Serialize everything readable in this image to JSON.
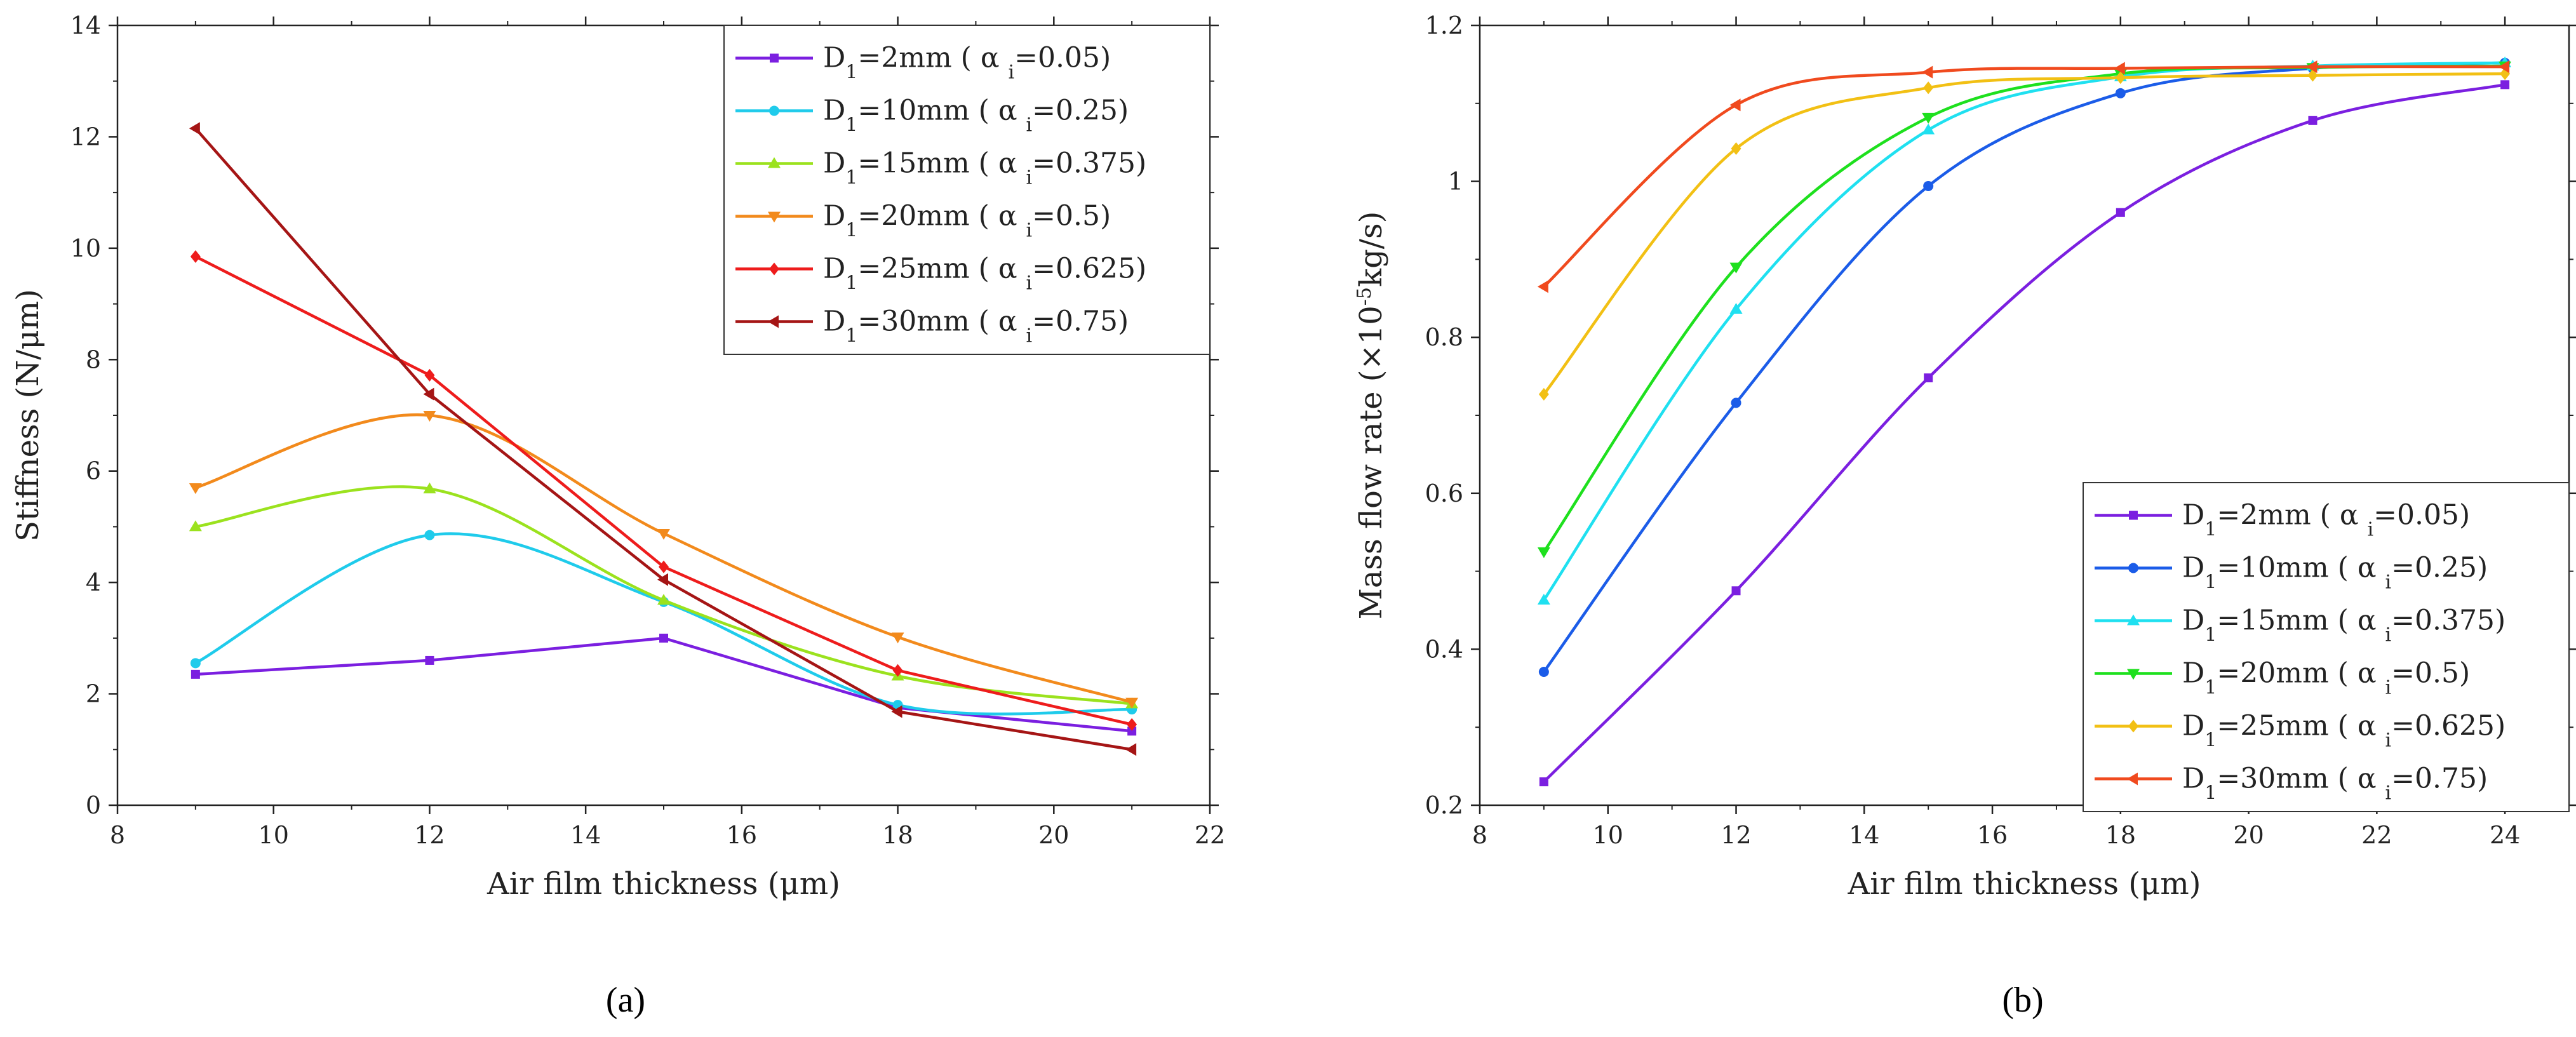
{
  "figure": {
    "panel_a_label": "(a)",
    "panel_b_label": "(b)"
  },
  "chart_data": [
    {
      "type": "line",
      "panel": "(a)",
      "title": "",
      "xlabel": "Air film thickness (μm)",
      "ylabel": "Stiffness (N/μm)",
      "xlim": [
        8,
        22
      ],
      "ylim": [
        0,
        14
      ],
      "xticks": [
        8,
        10,
        12,
        14,
        16,
        18,
        20,
        22
      ],
      "yticks": [
        0,
        2,
        4,
        6,
        8,
        10,
        12,
        14
      ],
      "grid": false,
      "legend_position": "top-right",
      "x": [
        9,
        12,
        15,
        18,
        21
      ],
      "series": [
        {
          "name_main": "D",
          "name_sub": "1",
          "name_mid": "=2mm ( α ",
          "name_sub2": "i",
          "name_tail": "=0.05)",
          "color": "#7B1FE0",
          "marker": "square",
          "smooth": false,
          "values": [
            2.35,
            2.6,
            3.0,
            1.75,
            1.33
          ]
        },
        {
          "name_main": "D",
          "name_sub": "1",
          "name_mid": "=10mm ( α ",
          "name_sub2": "i",
          "name_tail": "=0.25)",
          "color": "#1FCBEB",
          "marker": "circle",
          "smooth": true,
          "values": [
            2.55,
            4.85,
            3.65,
            1.8,
            1.72
          ]
        },
        {
          "name_main": "D",
          "name_sub": "1",
          "name_mid": "=15mm ( α ",
          "name_sub2": "i",
          "name_tail": "=0.375)",
          "color": "#9BE21E",
          "marker": "triangle-up",
          "smooth": true,
          "values": [
            5.0,
            5.68,
            3.68,
            2.32,
            1.82
          ]
        },
        {
          "name_main": "D",
          "name_sub": "1",
          "name_mid": "=20mm ( α ",
          "name_sub2": "i",
          "name_tail": "=0.5)",
          "color": "#F28A1C",
          "marker": "triangle-down",
          "smooth": true,
          "values": [
            5.7,
            7.0,
            4.88,
            3.02,
            1.85
          ]
        },
        {
          "name_main": "D",
          "name_sub": "1",
          "name_mid": "=25mm ( α ",
          "name_sub2": "i",
          "name_tail": "=0.625)",
          "color": "#EE1C1C",
          "marker": "diamond",
          "smooth": false,
          "values": [
            9.85,
            7.72,
            4.28,
            2.42,
            1.45
          ]
        },
        {
          "name_main": "D",
          "name_sub": "1",
          "name_mid": "=30mm ( α ",
          "name_sub2": "i",
          "name_tail": "=0.75)",
          "color": "#A51515",
          "marker": "triangle-left",
          "smooth": false,
          "values": [
            12.15,
            7.38,
            4.05,
            1.68,
            1.0
          ]
        }
      ]
    },
    {
      "type": "line",
      "panel": "(b)",
      "title": "",
      "xlabel": "Air film thickness (μm)",
      "ylabel_main": "Mass flow rate (×10",
      "ylabel_sup": "-5",
      "ylabel_tail": "kg/s)",
      "xlim": [
        8,
        25
      ],
      "ylim": [
        0.2,
        1.2
      ],
      "xticks": [
        8,
        10,
        12,
        14,
        16,
        18,
        20,
        22,
        24
      ],
      "yticks": [
        0.2,
        0.4,
        0.6,
        0.8,
        1.0,
        1.2
      ],
      "grid": false,
      "legend_position": "bottom-right",
      "x": [
        9,
        12,
        15,
        18,
        21,
        24
      ],
      "series": [
        {
          "name_main": "D",
          "name_sub": "1",
          "name_mid": "=2mm ( α ",
          "name_sub2": "i",
          "name_tail": "=0.05)",
          "color": "#7B1FE0",
          "marker": "square",
          "smooth": true,
          "values": [
            0.23,
            0.475,
            0.748,
            0.96,
            1.078,
            1.124
          ]
        },
        {
          "name_main": "D",
          "name_sub": "1",
          "name_mid": "=10mm ( α ",
          "name_sub2": "i",
          "name_tail": "=0.25)",
          "color": "#1B5CE8",
          "marker": "circle",
          "smooth": true,
          "values": [
            0.371,
            0.716,
            0.994,
            1.113,
            1.145,
            1.152
          ]
        },
        {
          "name_main": "D",
          "name_sub": "1",
          "name_mid": "=15mm ( α ",
          "name_sub2": "i",
          "name_tail": "=0.375)",
          "color": "#1FE0F0",
          "marker": "triangle-up",
          "smooth": true,
          "values": [
            0.463,
            0.836,
            1.066,
            1.134,
            1.148,
            1.152
          ]
        },
        {
          "name_main": "D",
          "name_sub": "1",
          "name_mid": "=20mm ( α ",
          "name_sub2": "i",
          "name_tail": "=0.5)",
          "color": "#1EE01E",
          "marker": "triangle-down",
          "smooth": true,
          "values": [
            0.525,
            0.89,
            1.082,
            1.138,
            1.146,
            1.148
          ]
        },
        {
          "name_main": "D",
          "name_sub": "1",
          "name_mid": "=25mm ( α ",
          "name_sub2": "i",
          "name_tail": "=0.625)",
          "color": "#F2C014",
          "marker": "diamond",
          "smooth": true,
          "values": [
            0.727,
            1.042,
            1.12,
            1.133,
            1.136,
            1.138
          ]
        },
        {
          "name_main": "D",
          "name_sub": "1",
          "name_mid": "=30mm ( α ",
          "name_sub2": "i",
          "name_tail": "=0.75)",
          "color": "#F04A1E",
          "marker": "triangle-left",
          "smooth": true,
          "values": [
            0.865,
            1.098,
            1.14,
            1.145,
            1.147,
            1.147
          ]
        }
      ]
    }
  ]
}
